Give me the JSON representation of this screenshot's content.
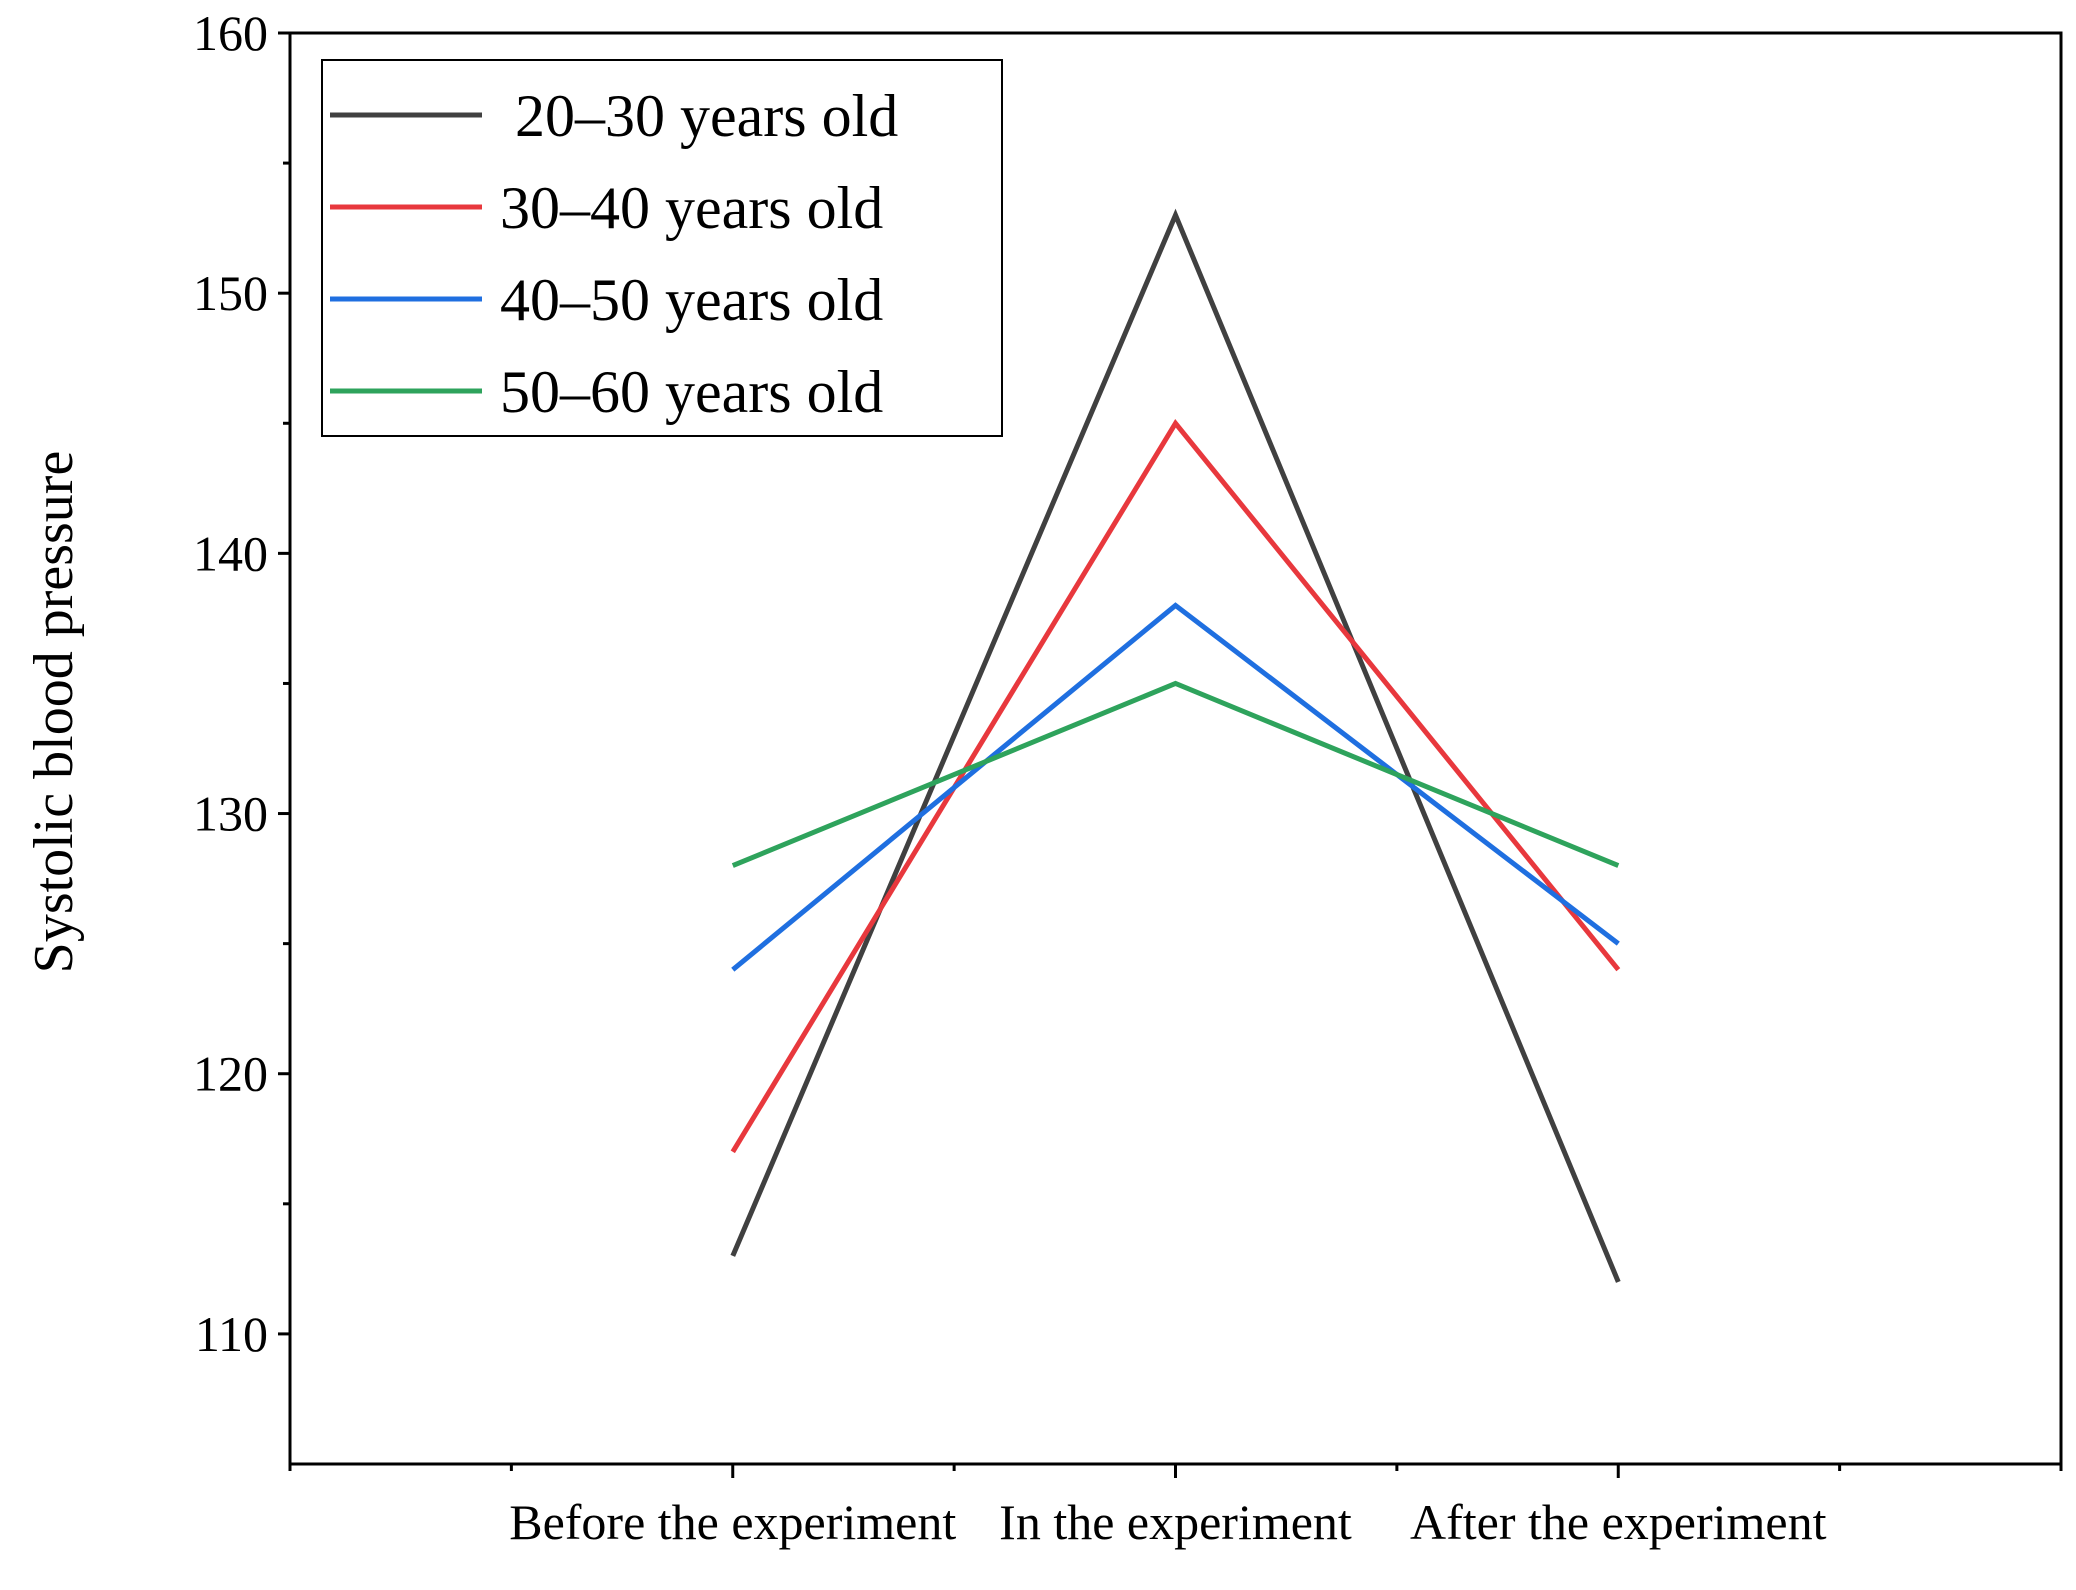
{
  "chart_data": {
    "type": "line",
    "title": "",
    "xlabel": "",
    "ylabel": "Systolic blood pressure",
    "categories": [
      "Before the experiment",
      "In the experiment",
      "After the experiment"
    ],
    "ylim": [
      105,
      160
    ],
    "yticks": [
      110,
      120,
      130,
      140,
      150,
      160
    ],
    "yticks_minor": [
      115,
      125,
      135,
      145,
      155
    ],
    "grid": false,
    "legend_position": "top-left",
    "series": [
      {
        "name": " 20–30 years old",
        "color": "#404040",
        "values": [
          113,
          153,
          112
        ]
      },
      {
        "name": "30–40 years old",
        "color": "#e8383d",
        "values": [
          117,
          145,
          124
        ]
      },
      {
        "name": "40–50 years old",
        "color": "#1f6fe0",
        "values": [
          124,
          138,
          125
        ]
      },
      {
        "name": "50–60 years old",
        "color": "#2ea35c",
        "values": [
          128,
          135,
          128
        ]
      }
    ]
  }
}
